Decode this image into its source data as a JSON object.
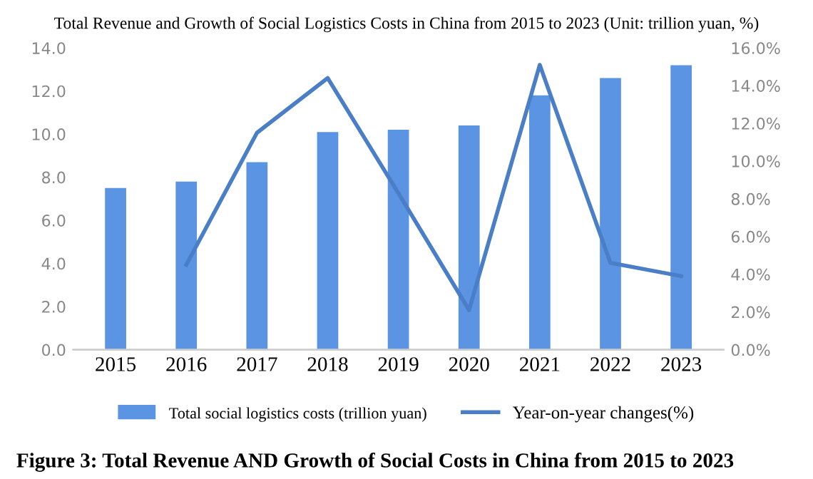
{
  "chart_data": {
    "type": "bar",
    "title": "Total Revenue and Growth of Social Logistics Costs in China from 2015 to 2023 (Unit: trillion yuan, %)",
    "categories": [
      "2015",
      "2016",
      "2017",
      "2018",
      "2019",
      "2020",
      "2021",
      "2022",
      "2023"
    ],
    "series": [
      {
        "name": "Total social logistics costs (trillion yuan)",
        "color": "#5b94e2",
        "values": [
          7.5,
          7.8,
          8.7,
          10.1,
          10.2,
          10.4,
          11.8,
          12.6,
          13.2
        ]
      },
      {
        "name": "Year-on-year changes(%)",
        "type": "line",
        "axis": "y2",
        "color": "#4a7ec6",
        "values": [
          null,
          4.5,
          11.5,
          14.4,
          8.3,
          2.1,
          15.1,
          4.6,
          3.9
        ]
      }
    ],
    "ylim": [
      0,
      14
    ],
    "yticks": [
      {
        "value": 0,
        "label": "0.0"
      },
      {
        "value": 2,
        "label": "2.0"
      },
      {
        "value": 4,
        "label": "4.0"
      },
      {
        "value": 6,
        "label": "6.0"
      },
      {
        "value": 8,
        "label": "8.0"
      },
      {
        "value": 10,
        "label": "10.0"
      },
      {
        "value": 12,
        "label": "12.0"
      },
      {
        "value": 14,
        "label": "14.0"
      }
    ],
    "y2lim": [
      0,
      16
    ],
    "y2ticks": [
      {
        "value": 0,
        "label": "0.0%"
      },
      {
        "value": 2,
        "label": "2.0%"
      },
      {
        "value": 4,
        "label": "4.0%"
      },
      {
        "value": 6,
        "label": "6.0%"
      },
      {
        "value": 8,
        "label": "8.0%"
      },
      {
        "value": 10,
        "label": "10.0%"
      },
      {
        "value": 12,
        "label": "12.0%"
      },
      {
        "value": 14,
        "label": "14.0%"
      },
      {
        "value": 16,
        "label": "16.0%"
      }
    ],
    "legend": "bottom",
    "grid": false,
    "annotations": [
      "Figure 3: Total Revenue AND Growth of Social Costs in China from 2015 to 2023"
    ]
  }
}
